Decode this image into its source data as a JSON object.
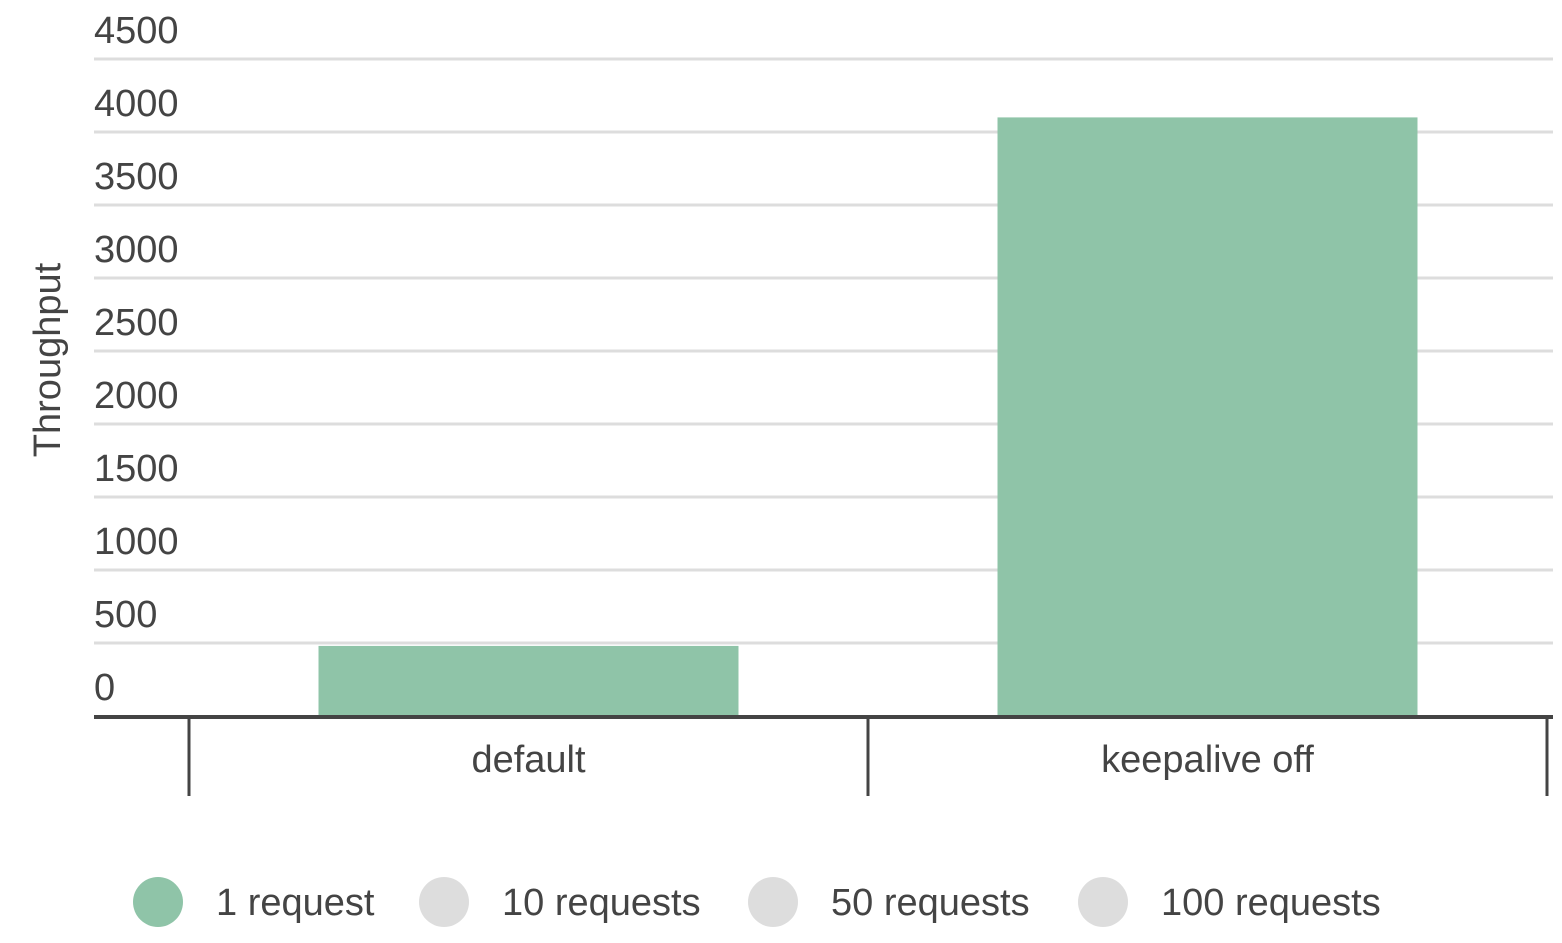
{
  "chart_data": {
    "type": "bar",
    "y_label": "Throughput",
    "categories": [
      "default",
      "keepalive off"
    ],
    "series": [
      {
        "name": "1 request",
        "color": "#8fc4a8",
        "values": [
          480,
          4100
        ]
      },
      {
        "name": "10 requests",
        "color": "#dddddd",
        "values": [
          null,
          null
        ]
      },
      {
        "name": "50 requests",
        "color": "#dddddd",
        "values": [
          null,
          null
        ]
      },
      {
        "name": "100 requests",
        "color": "#dddddd",
        "values": [
          null,
          null
        ]
      }
    ],
    "ylim": [
      0,
      4500
    ],
    "yticks": [
      0,
      500,
      1000,
      1500,
      2000,
      2500,
      3000,
      3500,
      4000,
      4500
    ],
    "grid": true,
    "legend": "bottom"
  }
}
